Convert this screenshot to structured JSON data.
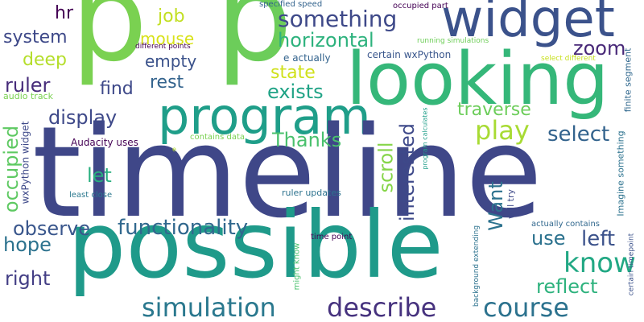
{
  "words": [
    {
      "id": "w-timeline",
      "text": "timeline",
      "color": "#3f4788"
    },
    {
      "id": "w-possible",
      "text": "possible",
      "color": "#1f9a8a"
    },
    {
      "id": "w-looking",
      "text": "looking",
      "color": "#35b779"
    },
    {
      "id": "w-p1",
      "text": "p",
      "color": "#7ad151"
    },
    {
      "id": "w-p2",
      "text": "p",
      "color": "#6ccd5a"
    },
    {
      "id": "w-program",
      "text": "program",
      "color": "#1f9e89"
    },
    {
      "id": "w-widget",
      "text": "widget",
      "color": "#3b528b"
    },
    {
      "id": "w-simulation",
      "text": "simulation",
      "color": "#2a788e"
    },
    {
      "id": "w-describe",
      "text": "describe",
      "color": "#46327e"
    },
    {
      "id": "w-course",
      "text": "course",
      "color": "#2c728e"
    },
    {
      "id": "w-something",
      "text": "something",
      "color": "#3e4989"
    },
    {
      "id": "w-functionality",
      "text": "functionality",
      "color": "#31688e"
    },
    {
      "id": "w-know",
      "text": "know",
      "color": "#22a884"
    },
    {
      "id": "w-horizontal",
      "text": "horizontal",
      "color": "#2db27d"
    },
    {
      "id": "w-system",
      "text": "system",
      "color": "#3e4989"
    },
    {
      "id": "w-hr",
      "text": "hr",
      "color": "#440154"
    },
    {
      "id": "w-job",
      "text": "job",
      "color": "#c2df23"
    },
    {
      "id": "w-mouse",
      "text": "mouse",
      "color": "#d8e219"
    },
    {
      "id": "w-empty",
      "text": "empty",
      "color": "#3b528b"
    },
    {
      "id": "w-zoom",
      "text": "zoom",
      "color": "#482878"
    },
    {
      "id": "w-deep",
      "text": "deep",
      "color": "#b5de2b"
    },
    {
      "id": "w-ruler",
      "text": "ruler",
      "color": "#472c7a"
    },
    {
      "id": "w-rest",
      "text": "rest",
      "color": "#33638d"
    },
    {
      "id": "w-find",
      "text": "find",
      "color": "#3e4989"
    },
    {
      "id": "w-state",
      "text": "state",
      "color": "#d0e11c"
    },
    {
      "id": "w-exists",
      "text": "exists",
      "color": "#20a386"
    },
    {
      "id": "w-display",
      "text": "display",
      "color": "#3e4989"
    },
    {
      "id": "w-play",
      "text": "play",
      "color": "#a8db34"
    },
    {
      "id": "w-traverse",
      "text": "traverse",
      "color": "#6ccd5a"
    },
    {
      "id": "w-select",
      "text": "select",
      "color": "#33638d"
    },
    {
      "id": "w-thanks",
      "text": "Thanks",
      "color": "#4ac16d"
    },
    {
      "id": "w-let",
      "text": "let",
      "color": "#29af7f"
    },
    {
      "id": "w-interested",
      "text": "interested",
      "color": "#3e4989"
    },
    {
      "id": "w-scroll",
      "text": "scroll",
      "color": "#86d549"
    },
    {
      "id": "w-want",
      "text": "Want",
      "color": "#2c728e"
    },
    {
      "id": "w-occupied",
      "text": "occupied",
      "color": "#5ec962"
    },
    {
      "id": "w-observe",
      "text": "observe",
      "color": "#39568c"
    },
    {
      "id": "w-left",
      "text": "left",
      "color": "#3b528b"
    },
    {
      "id": "w-use",
      "text": "use",
      "color": "#2c728e"
    },
    {
      "id": "w-hope",
      "text": "hope",
      "color": "#2c728e"
    },
    {
      "id": "w-right",
      "text": "right",
      "color": "#433e85"
    },
    {
      "id": "w-reflect",
      "text": "reflect",
      "color": "#2db27d"
    },
    {
      "id": "w-audacity-uses",
      "text": "Audacity uses",
      "color": "#440154"
    },
    {
      "id": "w-wxpython-widget",
      "text": "wxPython widget",
      "color": "#3e4989"
    },
    {
      "id": "w-specified-speed",
      "text": "specified speed",
      "color": "#33638d"
    },
    {
      "id": "w-occupied-part",
      "text": "occupied part",
      "color": "#440154"
    },
    {
      "id": "w-different-points",
      "text": "different points",
      "color": "#440154"
    },
    {
      "id": "w-e-actually",
      "text": "e actually",
      "color": "#33638d"
    },
    {
      "id": "w-certain-wxpython",
      "text": "certain wxPython",
      "color": "#39568c"
    },
    {
      "id": "w-running-simulations",
      "text": "running simulations",
      "color": "#6ece58"
    },
    {
      "id": "w-select-different",
      "text": "select different",
      "color": "#c8e020"
    },
    {
      "id": "w-audio-track",
      "text": "audio track",
      "color": "#7ad151"
    },
    {
      "id": "w-contains-data",
      "text": "contains data",
      "color": "#7ad151"
    },
    {
      "id": "w-least-close",
      "text": "least close",
      "color": "#2a788e"
    },
    {
      "id": "w-ruler-updates",
      "text": "ruler updates",
      "color": "#2c728e"
    },
    {
      "id": "w-will-try",
      "text": "will try",
      "color": "#3e4989"
    },
    {
      "id": "w-actually-contains",
      "text": "actually contains",
      "color": "#31688e"
    },
    {
      "id": "w-imagine-something",
      "text": "Imagine something",
      "color": "#2c728e"
    },
    {
      "id": "w-finite-segment",
      "text": "finite segment",
      "color": "#31688e"
    },
    {
      "id": "w-certain-timepoint",
      "text": "certain timepoint",
      "color": "#3b528b"
    },
    {
      "id": "w-program-calculates",
      "text": "program calculates",
      "color": "#1f9e89"
    },
    {
      "id": "w-background-extending",
      "text": "background extending",
      "color": "#2c728e"
    },
    {
      "id": "w-time-point",
      "text": "time point",
      "color": "#440154"
    },
    {
      "id": "w-might-know",
      "text": "might know",
      "color": "#4ac16d"
    },
    {
      "id": "w-e-small",
      "text": "e",
      "color": "#b5de2b"
    }
  ]
}
